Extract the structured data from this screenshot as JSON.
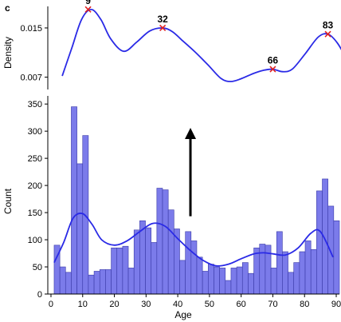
{
  "panel_letter": "c",
  "chart_data": [
    {
      "type": "line",
      "name": "density-panel",
      "ylabel": "Density",
      "xlim": [
        0,
        90
      ],
      "ylim": [
        0.005,
        0.0185
      ],
      "yticks": [
        0.007,
        0.015
      ],
      "ytick_labels": [
        "0.007",
        "0.015"
      ],
      "line_color": "#2a2ae6",
      "marker_color": "#e02020",
      "curve": {
        "x": [
          1,
          4,
          7,
          10,
          13,
          16,
          20,
          24,
          28,
          32,
          35,
          38,
          42,
          46,
          50,
          53,
          56,
          60,
          63,
          66,
          69,
          72,
          76,
          80,
          83,
          86,
          89
        ],
        "y": [
          0.0072,
          0.0118,
          0.0164,
          0.018,
          0.0163,
          0.0132,
          0.0112,
          0.0127,
          0.0145,
          0.015,
          0.0144,
          0.013,
          0.0111,
          0.009,
          0.0068,
          0.0063,
          0.0067,
          0.0076,
          0.0081,
          0.0083,
          0.0079,
          0.0083,
          0.0108,
          0.0135,
          0.014,
          0.0125,
          0.0097
        ]
      },
      "peaks": [
        {
          "x": 9,
          "y": 0.018,
          "label": "9"
        },
        {
          "x": 32,
          "y": 0.015,
          "label": "32"
        },
        {
          "x": 66,
          "y": 0.0083,
          "label": "66"
        },
        {
          "x": 83,
          "y": 0.014,
          "label": "83"
        }
      ]
    },
    {
      "type": "bar",
      "name": "histogram-panel",
      "xlabel": "Age",
      "ylabel": "Count",
      "xlim": [
        -1,
        91
      ],
      "ylim": [
        0,
        365
      ],
      "xticks": [
        0,
        10,
        20,
        30,
        40,
        50,
        60,
        70,
        80,
        90
      ],
      "xtick_labels": [
        "0",
        "10",
        "20",
        "30",
        "40",
        "50",
        "60",
        "70",
        "80",
        "90"
      ],
      "yticks": [
        0,
        50,
        100,
        150,
        200,
        250,
        300,
        350
      ],
      "ytick_labels": [
        "0",
        "50",
        "100",
        "150",
        "200",
        "250",
        "300",
        "350"
      ],
      "bin_width": 1.8,
      "bin_start": 1,
      "bar_color": "#7b7bea",
      "bar_edge": "#3a3aa8",
      "counts": [
        90,
        50,
        40,
        345,
        240,
        292,
        35,
        42,
        45,
        45,
        85,
        85,
        88,
        48,
        118,
        135,
        122,
        95,
        195,
        192,
        155,
        120,
        62,
        115,
        98,
        68,
        42,
        55,
        50,
        48,
        25,
        48,
        50,
        58,
        38,
        85,
        92,
        90,
        48,
        115,
        78,
        40,
        58,
        78,
        98,
        82,
        190,
        212,
        162,
        135
      ],
      "kde_color": "#2a2ae6",
      "kde": {
        "x": [
          1,
          4,
          7,
          10,
          13,
          16,
          20,
          24,
          28,
          32,
          36,
          40,
          44,
          48,
          52,
          56,
          60,
          64,
          67,
          70,
          74,
          78,
          82,
          85,
          89
        ],
        "y": [
          58,
          95,
          140,
          148,
          128,
          100,
          90,
          98,
          115,
          130,
          125,
          102,
          80,
          62,
          52,
          55,
          65,
          74,
          76,
          74,
          72,
          85,
          112,
          115,
          68
        ]
      },
      "arrow": {
        "x": 44,
        "y_from": 315,
        "y_to": 155
      }
    }
  ]
}
